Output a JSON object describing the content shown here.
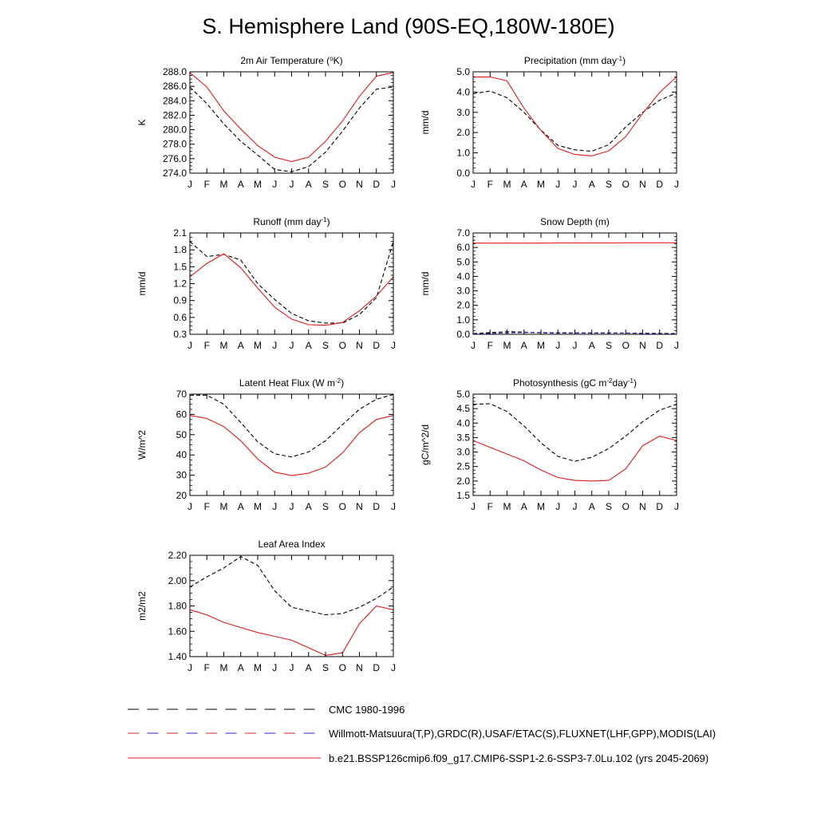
{
  "page": {
    "title": "S. Hemisphere Land (90S-EQ,180W-180E)"
  },
  "colors": {
    "obs1": "#000000",
    "obs2_a": "#cc2222",
    "obs2_b": "#2222cc",
    "model": "#e31a1c"
  },
  "legend": [
    {
      "label": "CMC 1980-1996",
      "style": "dash-black"
    },
    {
      "label": "Willmott-Matsuura(T,P),GRDC(R),USAF/ETAC(S),FLUXNET(LHF,GPP),MODIS(LAI)",
      "style": "dash-redblue"
    },
    {
      "label": "b.e21.BSSP126cmip6.f09_g17.CMIP6-SSP1-2.6-SSP3-7.0Lu.102 (yrs 2045-2069)",
      "style": "solid-red"
    }
  ],
  "chart_data": [
    {
      "type": "line",
      "title": "2m Air Temperature (°K)",
      "title_main": "2m Air Temperature (",
      "title_sup": "o",
      "title_end": "K)",
      "ylabel": "K",
      "ylim": [
        274,
        288
      ],
      "yticks": [
        274,
        276,
        278,
        280,
        282,
        284,
        286,
        288
      ],
      "ytick_labels": [
        "274.0",
        "276.0",
        "278.0",
        "280.0",
        "282.0",
        "284.0",
        "286.0",
        "288.0"
      ],
      "x": [
        "J",
        "F",
        "M",
        "A",
        "M",
        "J",
        "J",
        "A",
        "S",
        "O",
        "N",
        "D",
        "J"
      ],
      "series": [
        {
          "style": "dash",
          "values": [
            285.9,
            283.6,
            280.8,
            278.4,
            276.5,
            274.5,
            274.2,
            274.9,
            276.9,
            279.8,
            283.0,
            285.6,
            285.9
          ]
        },
        {
          "style": "solid",
          "values": [
            287.9,
            285.9,
            282.6,
            280.1,
            277.8,
            276.2,
            275.6,
            276.2,
            278.4,
            281.2,
            284.6,
            287.4,
            287.9
          ]
        }
      ]
    },
    {
      "type": "line",
      "title": "Precipitation (mm day-1)",
      "title_main": "Precipitation (mm day",
      "title_sup": "-1",
      "title_end": ")",
      "ylabel": "mm/d",
      "ylim": [
        0,
        5
      ],
      "yticks": [
        0,
        1,
        2,
        3,
        4,
        5
      ],
      "ytick_labels": [
        "0.0",
        "1.0",
        "2.0",
        "3.0",
        "4.0",
        "5.0"
      ],
      "x": [
        "J",
        "F",
        "M",
        "A",
        "M",
        "J",
        "J",
        "A",
        "S",
        "O",
        "N",
        "D",
        "J"
      ],
      "series": [
        {
          "style": "dash",
          "values": [
            3.92,
            4.05,
            3.72,
            3.0,
            2.12,
            1.37,
            1.15,
            1.08,
            1.4,
            2.28,
            3.0,
            3.6,
            3.95
          ]
        },
        {
          "style": "solid",
          "values": [
            4.75,
            4.75,
            4.55,
            3.2,
            2.1,
            1.22,
            0.92,
            0.85,
            1.1,
            1.8,
            2.95,
            3.98,
            4.75
          ]
        }
      ]
    },
    {
      "type": "line",
      "title": "Runoff (mm day-1)",
      "title_main": "Runoff (mm day",
      "title_sup": "-1",
      "title_end": ")",
      "ylabel": "mm/d",
      "ylim": [
        0.3,
        2.1
      ],
      "yticks": [
        0.3,
        0.6,
        0.9,
        1.2,
        1.5,
        1.8,
        2.1
      ],
      "ytick_labels": [
        "0.3",
        "0.6",
        "0.9",
        "1.2",
        "1.5",
        "1.8",
        "2.1"
      ],
      "x": [
        "J",
        "F",
        "M",
        "A",
        "M",
        "J",
        "J",
        "A",
        "S",
        "O",
        "N",
        "D",
        "J"
      ],
      "series": [
        {
          "style": "dash",
          "values": [
            1.95,
            1.68,
            1.72,
            1.62,
            1.2,
            0.92,
            0.67,
            0.54,
            0.5,
            0.5,
            0.65,
            0.95,
            1.95
          ]
        },
        {
          "style": "solid",
          "values": [
            1.32,
            1.56,
            1.73,
            1.48,
            1.12,
            0.78,
            0.57,
            0.47,
            0.46,
            0.51,
            0.72,
            0.98,
            1.32
          ]
        }
      ]
    },
    {
      "type": "line",
      "title": "Snow Depth (m)",
      "title_main": "Snow Depth (m)",
      "title_sup": "",
      "title_end": "",
      "ylabel": "mm/d",
      "ylim": [
        0,
        7
      ],
      "yticks": [
        0,
        1,
        2,
        3,
        4,
        5,
        6,
        7
      ],
      "ytick_labels": [
        "0.0",
        "1.0",
        "2.0",
        "3.0",
        "4.0",
        "5.0",
        "6.0",
        "7.0"
      ],
      "x": [
        "J",
        "F",
        "M",
        "A",
        "M",
        "J",
        "J",
        "A",
        "S",
        "O",
        "N",
        "D",
        "J"
      ],
      "series": [
        {
          "style": "dash",
          "values": [
            0.05,
            0.12,
            0.18,
            0.15,
            0.1,
            0.09,
            0.08,
            0.08,
            0.08,
            0.08,
            0.07,
            0.06,
            0.05
          ]
        },
        {
          "style": "dash-blue",
          "values": [
            0.02,
            0.06,
            0.1,
            0.12,
            0.12,
            0.11,
            0.1,
            0.1,
            0.1,
            0.09,
            0.07,
            0.04,
            0.02
          ]
        },
        {
          "style": "solid",
          "values": [
            6.3,
            6.3,
            6.3,
            6.3,
            6.3,
            6.31,
            6.31,
            6.31,
            6.31,
            6.32,
            6.32,
            6.32,
            6.32
          ]
        }
      ]
    },
    {
      "type": "line",
      "title": "Latent Heat Flux (W m-2)",
      "title_main": "Latent Heat Flux (W m",
      "title_sup": "-2",
      "title_end": ")",
      "ylabel": "W/m^2",
      "ylim": [
        20,
        70
      ],
      "yticks": [
        20,
        30,
        40,
        50,
        60,
        70
      ],
      "ytick_labels": [
        "20",
        "30",
        "40",
        "50",
        "60",
        "70"
      ],
      "x": [
        "J",
        "F",
        "M",
        "A",
        "M",
        "J",
        "J",
        "A",
        "S",
        "O",
        "N",
        "D",
        "J"
      ],
      "series": [
        {
          "style": "dash",
          "values": [
            69.5,
            69.5,
            65.0,
            56.0,
            46.5,
            40.5,
            39.0,
            41.5,
            47.0,
            55.0,
            62.5,
            67.5,
            69.8
          ]
        },
        {
          "style": "solid",
          "values": [
            59.5,
            58.0,
            54.0,
            47.0,
            38.0,
            31.5,
            29.8,
            31.0,
            34.0,
            41.0,
            51.0,
            57.5,
            59.5
          ]
        }
      ]
    },
    {
      "type": "line",
      "title": "Photosynthesis (gC m-2day-1)",
      "title_main": "Photosynthesis (gC m",
      "title_sup": "-2",
      "title_mid": "day",
      "title_sup2": "-1",
      "title_end": ")",
      "ylabel": "gC/m^2/d",
      "ylim": [
        1.5,
        5.0
      ],
      "yticks": [
        1.5,
        2.0,
        2.5,
        3.0,
        3.5,
        4.0,
        4.5,
        5.0
      ],
      "ytick_labels": [
        "1.5",
        "2.0",
        "2.5",
        "3.0",
        "3.5",
        "4.0",
        "4.5",
        "5.0"
      ],
      "x": [
        "J",
        "F",
        "M",
        "A",
        "M",
        "J",
        "J",
        "A",
        "S",
        "O",
        "N",
        "D",
        "J"
      ],
      "series": [
        {
          "style": "dash",
          "values": [
            4.65,
            4.67,
            4.4,
            3.9,
            3.32,
            2.85,
            2.68,
            2.82,
            3.12,
            3.55,
            4.05,
            4.45,
            4.65
          ]
        },
        {
          "style": "solid",
          "values": [
            3.4,
            3.16,
            2.93,
            2.7,
            2.38,
            2.12,
            2.02,
            2.0,
            2.02,
            2.42,
            3.22,
            3.55,
            3.4
          ]
        }
      ]
    },
    {
      "type": "line",
      "title": "Leaf Area Index",
      "title_main": "Leaf Area Index",
      "title_sup": "",
      "title_end": "",
      "ylabel": "m2/m2",
      "ylim": [
        1.4,
        2.2
      ],
      "yticks": [
        1.4,
        1.6,
        1.8,
        2.0,
        2.2
      ],
      "ytick_labels": [
        "1.40",
        "1.60",
        "1.80",
        "2.00",
        "2.20"
      ],
      "x": [
        "J",
        "F",
        "M",
        "A",
        "M",
        "J",
        "J",
        "A",
        "S",
        "O",
        "N",
        "D",
        "J"
      ],
      "series": [
        {
          "style": "dash",
          "values": [
            1.95,
            2.03,
            2.1,
            2.19,
            2.12,
            1.92,
            1.79,
            1.76,
            1.73,
            1.74,
            1.79,
            1.86,
            1.95
          ]
        },
        {
          "style": "solid",
          "values": [
            1.77,
            1.73,
            1.67,
            1.63,
            1.59,
            1.56,
            1.53,
            1.47,
            1.41,
            1.43,
            1.66,
            1.8,
            1.77
          ]
        }
      ]
    }
  ]
}
